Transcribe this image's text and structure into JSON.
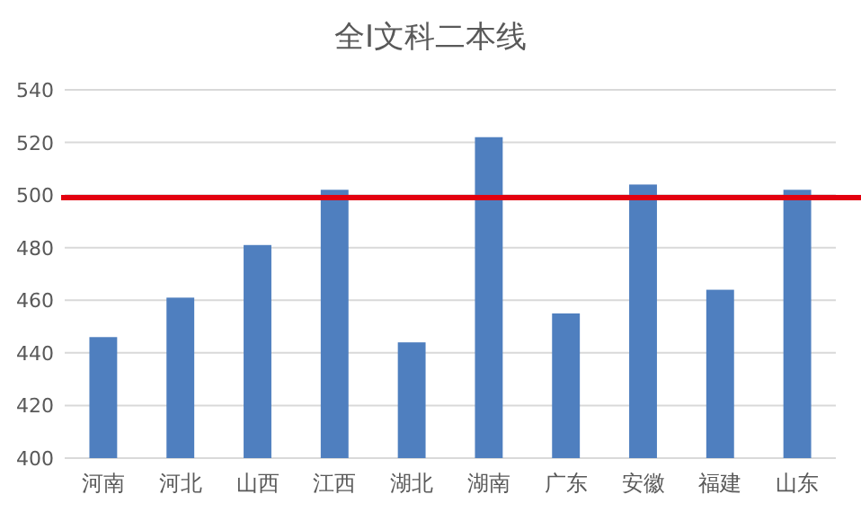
{
  "chart_data": {
    "type": "bar",
    "title": "全Ⅰ文科二本线",
    "categories": [
      "河南",
      "河北",
      "山西",
      "江西",
      "湖北",
      "湖南",
      "广东",
      "安徽",
      "福建",
      "山东"
    ],
    "values": [
      446,
      461,
      481,
      502,
      444,
      522,
      455,
      504,
      464,
      502
    ],
    "color": "#4f7fbf",
    "ylim": [
      400,
      540
    ],
    "yticks": [
      400,
      420,
      440,
      460,
      480,
      500,
      520,
      540
    ],
    "grid": "y",
    "ref_lines": [
      {
        "axis": "y",
        "value": 499,
        "color": "#e3000f"
      }
    ]
  }
}
